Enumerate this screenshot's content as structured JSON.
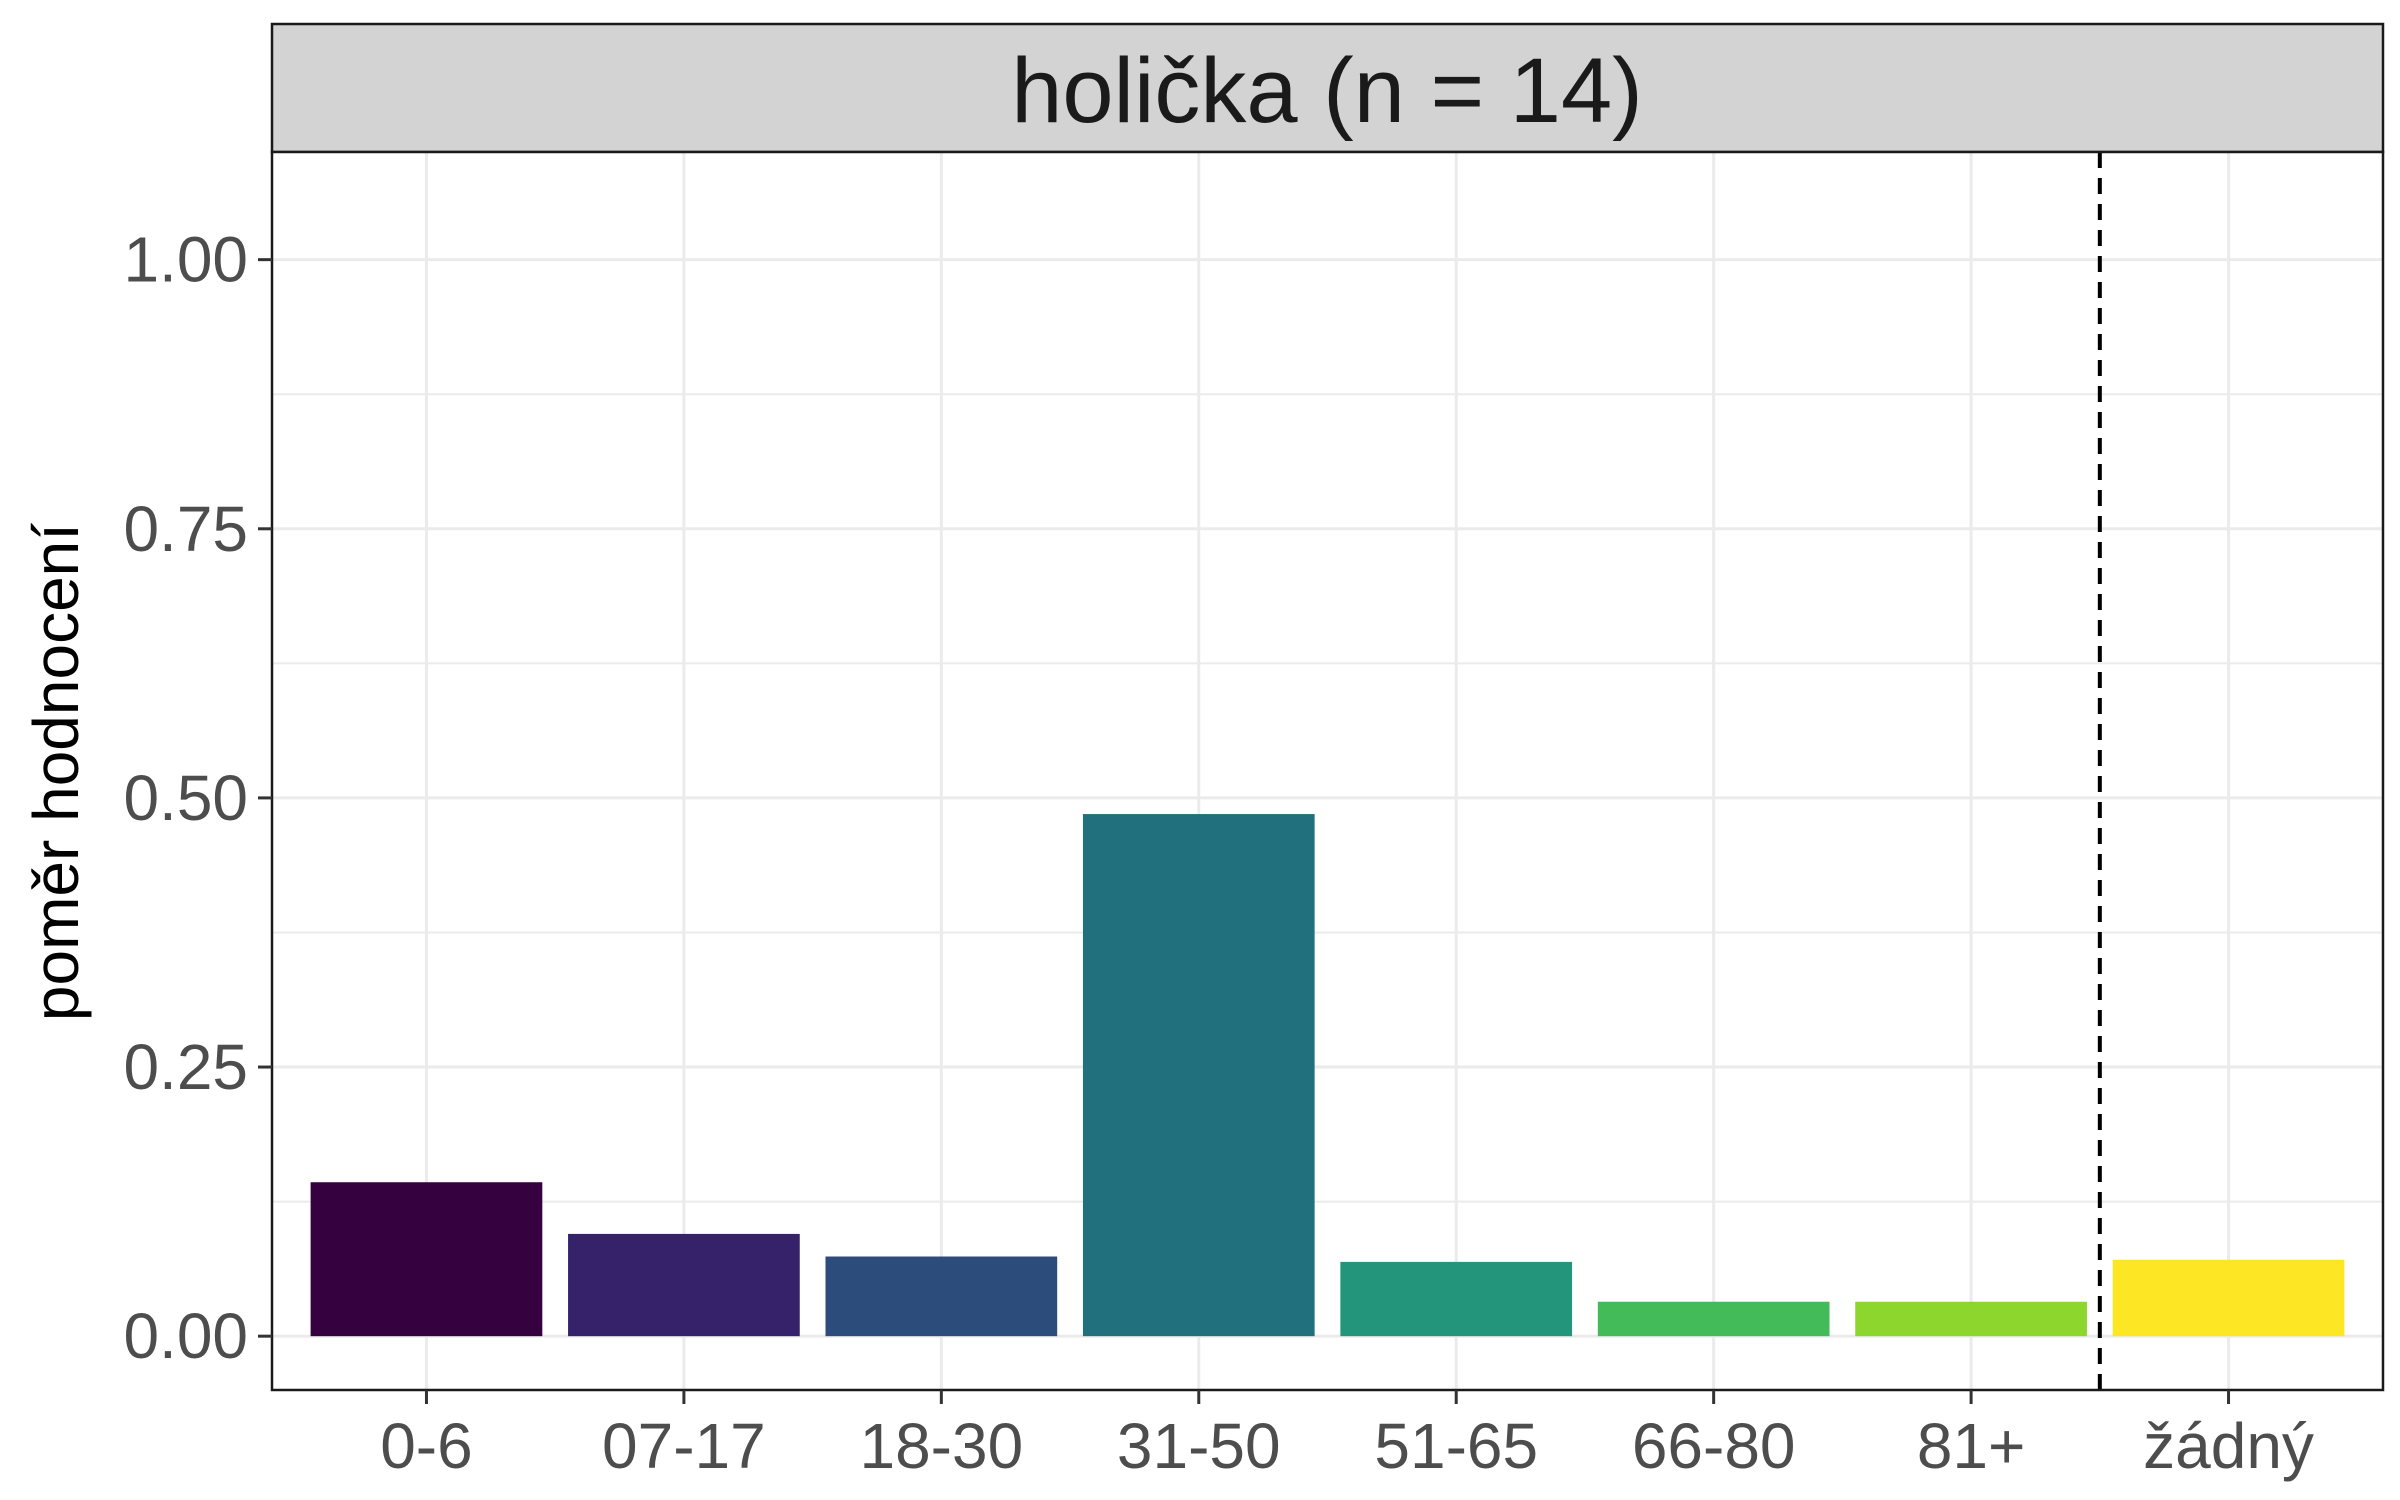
{
  "chart_data": {
    "type": "bar",
    "facet_title": "holička (n = 14)",
    "ylabel": "poměr hodnocení",
    "xlabel": "",
    "categories": [
      "0-6",
      "07-17",
      "18-30",
      "31-50",
      "51-65",
      "66-80",
      "81+",
      "žádný"
    ],
    "values": [
      0.143,
      0.095,
      0.074,
      0.485,
      0.069,
      0.032,
      0.032,
      0.071
    ],
    "colors": [
      "#36013f",
      "#35226a",
      "#2c4c7c",
      "#21707e",
      "#22957a",
      "#42bb58",
      "#8dd62e",
      "#fde725"
    ],
    "ylim": [
      -0.05,
      1.1
    ],
    "yticks": [
      "0.00",
      "0.25",
      "0.50",
      "0.75",
      "1.00"
    ],
    "ytick_values": [
      0,
      0.25,
      0.5,
      0.75,
      1.0
    ],
    "grid": true,
    "reference_line": {
      "style": "dashed",
      "between": [
        "81+",
        "žádný"
      ]
    }
  }
}
